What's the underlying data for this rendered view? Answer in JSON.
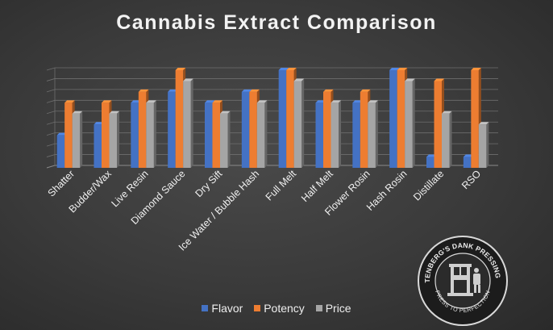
{
  "chart_data": {
    "type": "bar",
    "title": "Cannabis Extract Comparison",
    "categories": [
      "Shatter",
      "Budder/Wax",
      "Live Resin",
      "Diamond Sauce",
      "Dry Sift",
      "Ice Water / Bubble Hash",
      "Full Melt",
      "Half Melt",
      "Flower Rosin",
      "Hash Rosin",
      "Distillate",
      "RSO"
    ],
    "series": [
      {
        "name": "Flavor",
        "color": "#4472c4",
        "values": [
          3,
          4,
          6,
          7,
          6,
          7,
          9,
          6,
          6,
          9,
          1,
          1
        ]
      },
      {
        "name": "Potency",
        "color": "#ed7d31",
        "values": [
          6,
          6,
          7,
          9,
          6,
          7,
          9,
          7,
          7,
          9,
          8,
          9
        ]
      },
      {
        "name": "Price",
        "color": "#a5a5a5",
        "values": [
          5,
          5,
          6,
          8,
          5,
          6,
          8,
          6,
          6,
          8,
          5,
          4
        ]
      }
    ],
    "ylim": [
      0,
      9
    ],
    "grid": true,
    "legend": "bottom"
  },
  "logo": {
    "name": "gutenberg-dank-pressing-co-logo",
    "text_top": "GUTENBERG'S DANK PRESSING CO.",
    "text_bottom": "PRESS TO PERFECTION"
  }
}
